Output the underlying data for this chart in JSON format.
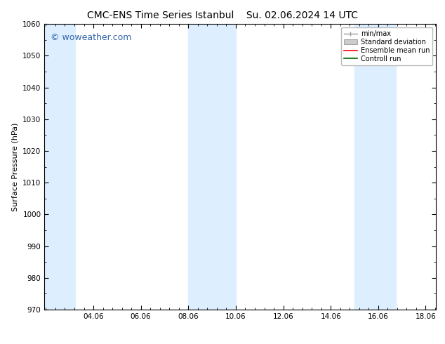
{
  "title_left": "CMC-ENS Time Series Istanbul",
  "title_right": "Su. 02.06.2024 14 UTC",
  "ylabel": "Surface Pressure (hPa)",
  "ylim": [
    970,
    1060
  ],
  "yticks": [
    970,
    980,
    990,
    1000,
    1010,
    1020,
    1030,
    1040,
    1050,
    1060
  ],
  "xlim": [
    2.0,
    18.5
  ],
  "xtick_positions": [
    4.06,
    6.06,
    8.06,
    10.06,
    12.06,
    14.06,
    16.06,
    18.06
  ],
  "xticklabels": [
    "04.06",
    "06.06",
    "08.06",
    "10.06",
    "12.06",
    "14.06",
    "16.06",
    "18.06"
  ],
  "bg_color": "#ffffff",
  "plot_bg_color": "#ffffff",
  "shaded_bands": [
    {
      "x_start": 2.0,
      "x_end": 3.3,
      "color": "#ddeeff"
    },
    {
      "x_start": 8.06,
      "x_end": 10.06,
      "color": "#ddeeff"
    },
    {
      "x_start": 15.06,
      "x_end": 16.8,
      "color": "#ddeeff"
    }
  ],
  "watermark_text": "© woweather.com",
  "watermark_color": "#3366aa",
  "legend_items": [
    {
      "label": "min/max",
      "type": "minmax",
      "color": "#999999"
    },
    {
      "label": "Standard deviation",
      "type": "patch",
      "color": "#cccccc"
    },
    {
      "label": "Ensemble mean run",
      "type": "line",
      "color": "#ff0000",
      "lw": 1.2
    },
    {
      "label": "Controll run",
      "type": "line",
      "color": "#006600",
      "lw": 1.2
    }
  ],
  "title_fontsize": 10,
  "axis_fontsize": 8,
  "tick_fontsize": 7.5,
  "watermark_fontsize": 9
}
